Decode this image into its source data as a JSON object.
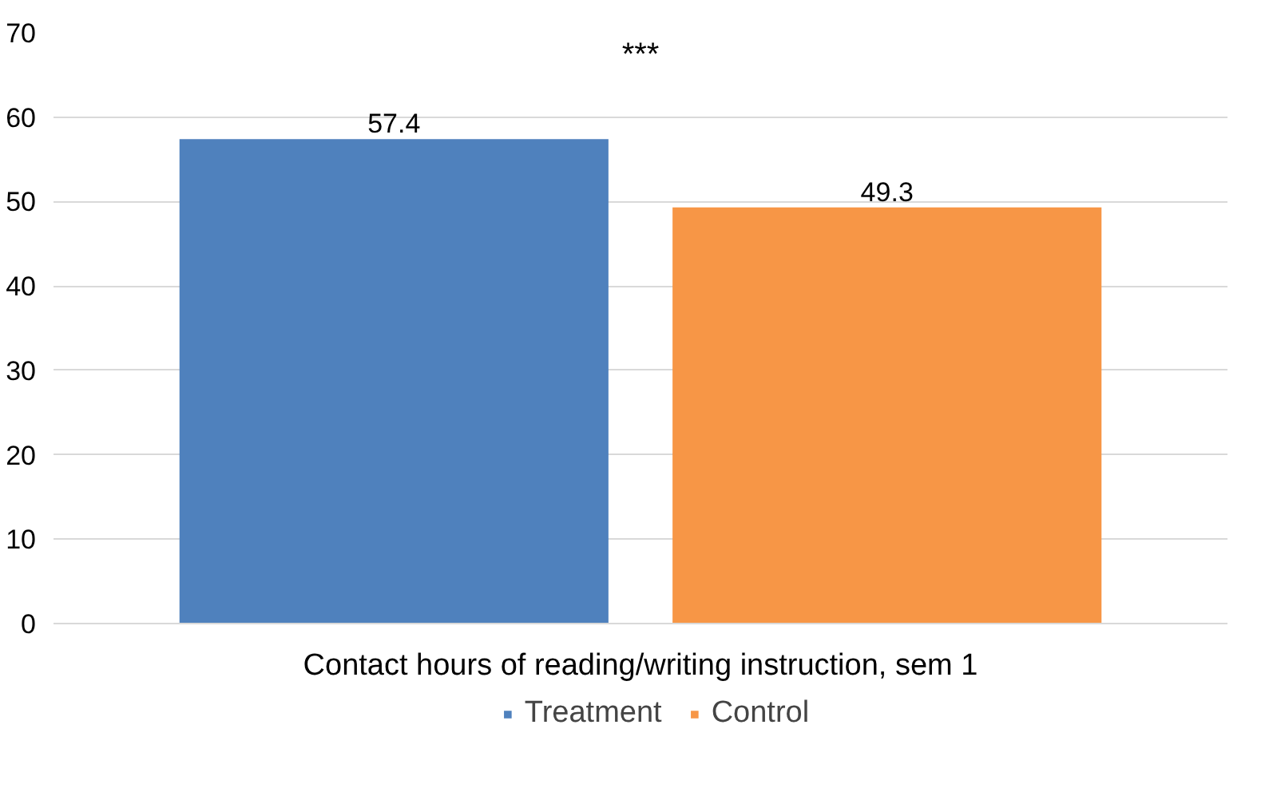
{
  "chart_data": {
    "type": "bar",
    "categories": [
      "Contact hours of reading/writing instruction, sem 1"
    ],
    "series": [
      {
        "name": "Treatment",
        "color": "#4f81bd",
        "values": [
          57.4
        ]
      },
      {
        "name": "Control",
        "color": "#f79646",
        "values": [
          49.3
        ]
      }
    ],
    "ylim": [
      0,
      70
    ],
    "yticks": [
      0,
      10,
      20,
      30,
      40,
      50,
      60,
      70
    ],
    "grid": "y",
    "legend": "bottom",
    "data_labels": true,
    "annotations": [
      "***"
    ]
  }
}
